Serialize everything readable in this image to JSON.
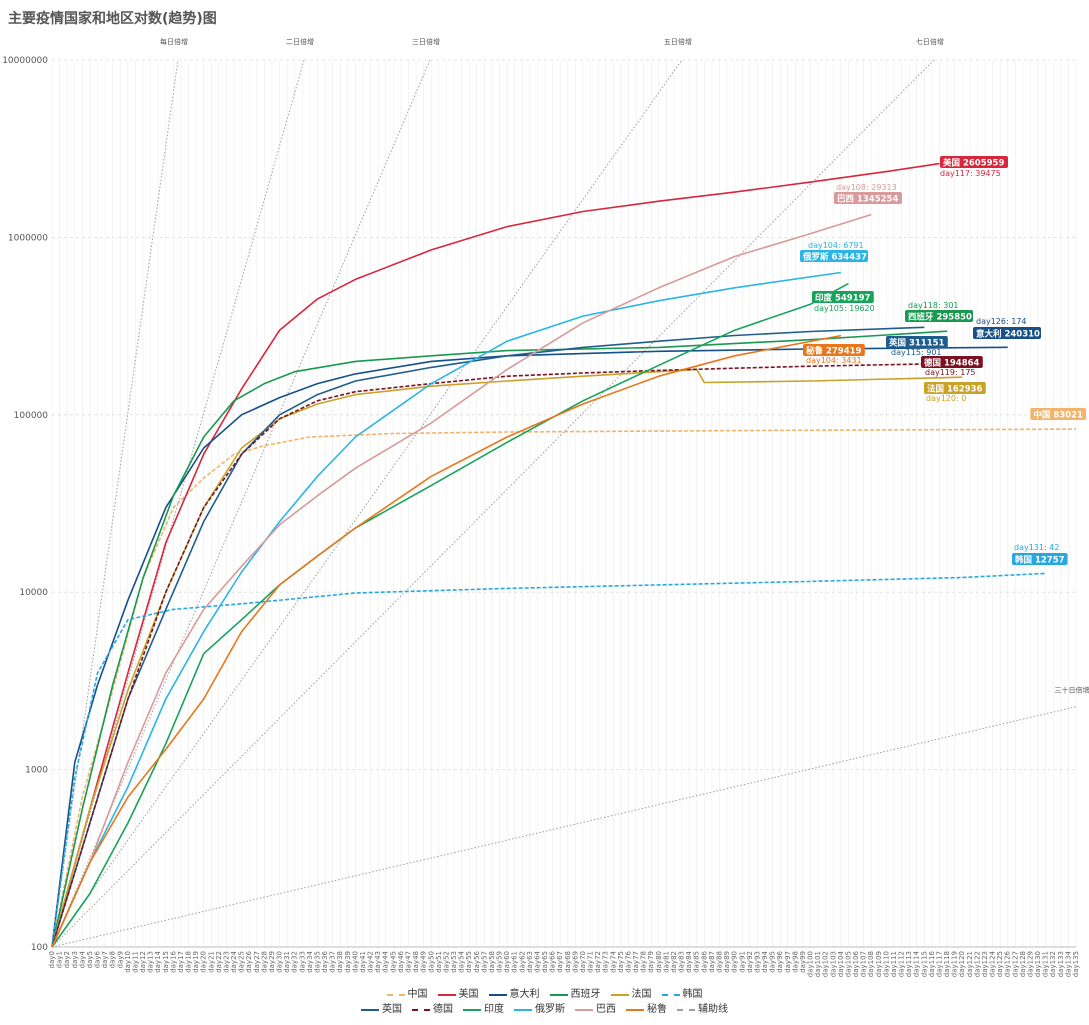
{
  "chart_data": {
    "type": "line",
    "title": "主要疫情国家和地区对数(趋势)图",
    "y_scale": "log",
    "ylim": [
      100,
      10000000
    ],
    "y_ticks": [
      "100",
      "1000",
      "10000",
      "100000",
      "1000000",
      "10000000"
    ],
    "x_prefix": "day",
    "x_max": 135,
    "reference_lines": [
      {
        "label": "每日倍增",
        "doubling_days": 1
      },
      {
        "label": "二日倍增",
        "doubling_days": 2
      },
      {
        "label": "三日倍增",
        "doubling_days": 3
      },
      {
        "label": "五日倍增",
        "doubling_days": 5
      },
      {
        "label": "七日倍增",
        "doubling_days": 7
      },
      {
        "label": "三十日倍增",
        "doubling_days": 30
      }
    ],
    "series": [
      {
        "name": "中国",
        "color": "#f2b46a",
        "dash": true,
        "points": [
          [
            0,
            100
          ],
          [
            4,
            700
          ],
          [
            8,
            2800
          ],
          [
            12,
            12000
          ],
          [
            16,
            30000
          ],
          [
            20,
            44000
          ],
          [
            24,
            60000
          ],
          [
            28,
            67000
          ],
          [
            34,
            75000
          ],
          [
            45,
            78500
          ],
          [
            60,
            80000
          ],
          [
            90,
            81500
          ],
          [
            135,
            83021
          ]
        ],
        "end_label": "中国 83021",
        "day_label": ""
      },
      {
        "name": "美国",
        "color": "#d7263d",
        "dash": false,
        "points": [
          [
            0,
            100
          ],
          [
            5,
            600
          ],
          [
            10,
            3500
          ],
          [
            15,
            19000
          ],
          [
            20,
            60000
          ],
          [
            25,
            140000
          ],
          [
            30,
            300000
          ],
          [
            35,
            450000
          ],
          [
            40,
            580000
          ],
          [
            50,
            850000
          ],
          [
            60,
            1150000
          ],
          [
            70,
            1400000
          ],
          [
            80,
            1600000
          ],
          [
            90,
            1800000
          ],
          [
            100,
            2050000
          ],
          [
            110,
            2350000
          ],
          [
            117,
            2605959
          ]
        ],
        "end_label": "美国 2605959",
        "day_label": "day117: 39475"
      },
      {
        "name": "意大利",
        "color": "#174f88",
        "dash": false,
        "points": [
          [
            0,
            100
          ],
          [
            3,
            1100
          ],
          [
            6,
            3000
          ],
          [
            10,
            9000
          ],
          [
            15,
            30000
          ],
          [
            20,
            65000
          ],
          [
            25,
            100000
          ],
          [
            30,
            125000
          ],
          [
            35,
            150000
          ],
          [
            40,
            170000
          ],
          [
            50,
            200000
          ],
          [
            60,
            215000
          ],
          [
            80,
            228000
          ],
          [
            100,
            235000
          ],
          [
            126,
            240310
          ]
        ],
        "end_label": "意大利 240310",
        "day_label": "day126: 174"
      },
      {
        "name": "西班牙",
        "color": "#1a9850",
        "dash": false,
        "points": [
          [
            0,
            100
          ],
          [
            4,
            600
          ],
          [
            8,
            3000
          ],
          [
            12,
            12000
          ],
          [
            16,
            35000
          ],
          [
            20,
            75000
          ],
          [
            24,
            120000
          ],
          [
            28,
            150000
          ],
          [
            32,
            175000
          ],
          [
            40,
            200000
          ],
          [
            50,
            215000
          ],
          [
            60,
            230000
          ],
          [
            80,
            240000
          ],
          [
            100,
            265000
          ],
          [
            118,
            295850
          ]
        ],
        "end_label": "西班牙 295850",
        "day_label": "day118: 301"
      },
      {
        "name": "法国",
        "color": "#c9a227",
        "dash": false,
        "points": [
          [
            0,
            100
          ],
          [
            5,
            600
          ],
          [
            10,
            2800
          ],
          [
            15,
            10000
          ],
          [
            20,
            30000
          ],
          [
            25,
            65000
          ],
          [
            30,
            95000
          ],
          [
            35,
            115000
          ],
          [
            40,
            130000
          ],
          [
            50,
            145000
          ],
          [
            60,
            155000
          ],
          [
            70,
            165000
          ],
          [
            80,
            175000
          ],
          [
            85,
            180000
          ],
          [
            86,
            152000
          ],
          [
            100,
            155000
          ],
          [
            120,
            162936
          ]
        ],
        "end_label": "法国 162936",
        "day_label": "day120: 0"
      },
      {
        "name": "韩国",
        "color": "#29a8e0",
        "dash": true,
        "points": [
          [
            0,
            100
          ],
          [
            3,
            900
          ],
          [
            6,
            3500
          ],
          [
            10,
            7000
          ],
          [
            16,
            8000
          ],
          [
            25,
            8600
          ],
          [
            40,
            9900
          ],
          [
            60,
            10500
          ],
          [
            80,
            11000
          ],
          [
            100,
            11500
          ],
          [
            120,
            12100
          ],
          [
            131,
            12757
          ]
        ],
        "end_label": "韩国 12757",
        "day_label": "day131: 42"
      },
      {
        "name": "英国",
        "color": "#1f5e8c",
        "dash": false,
        "points": [
          [
            0,
            100
          ],
          [
            5,
            500
          ],
          [
            10,
            2500
          ],
          [
            15,
            8000
          ],
          [
            20,
            25000
          ],
          [
            25,
            60000
          ],
          [
            30,
            100000
          ],
          [
            35,
            130000
          ],
          [
            40,
            155000
          ],
          [
            50,
            185000
          ],
          [
            60,
            215000
          ],
          [
            70,
            240000
          ],
          [
            80,
            260000
          ],
          [
            90,
            280000
          ],
          [
            100,
            295000
          ],
          [
            115,
            311151
          ]
        ],
        "end_label": "英国 311151",
        "day_label": "day115: 901"
      },
      {
        "name": "德国",
        "color": "#7a1222",
        "dash": true,
        "points": [
          [
            0,
            100
          ],
          [
            5,
            500
          ],
          [
            10,
            2500
          ],
          [
            15,
            10000
          ],
          [
            20,
            30000
          ],
          [
            25,
            60000
          ],
          [
            30,
            95000
          ],
          [
            35,
            120000
          ],
          [
            40,
            135000
          ],
          [
            50,
            150000
          ],
          [
            60,
            165000
          ],
          [
            70,
            172000
          ],
          [
            80,
            178000
          ],
          [
            90,
            183000
          ],
          [
            100,
            188000
          ],
          [
            119,
            194864
          ]
        ],
        "end_label": "德国 194864",
        "day_label": "day119: 175"
      },
      {
        "name": "印度",
        "color": "#17a35c",
        "dash": false,
        "points": [
          [
            0,
            100
          ],
          [
            5,
            200
          ],
          [
            10,
            500
          ],
          [
            15,
            1400
          ],
          [
            20,
            4500
          ],
          [
            25,
            7000
          ],
          [
            30,
            11000
          ],
          [
            35,
            16000
          ],
          [
            40,
            23000
          ],
          [
            50,
            40000
          ],
          [
            60,
            70000
          ],
          [
            70,
            120000
          ],
          [
            80,
            190000
          ],
          [
            90,
            300000
          ],
          [
            100,
            420000
          ],
          [
            105,
            549197
          ]
        ],
        "end_label": "印度 549197",
        "day_label": "day105: 19620"
      },
      {
        "name": "俄罗斯",
        "color": "#2bb5e6",
        "dash": false,
        "points": [
          [
            0,
            100
          ],
          [
            5,
            300
          ],
          [
            10,
            800
          ],
          [
            15,
            2500
          ],
          [
            20,
            6000
          ],
          [
            25,
            13000
          ],
          [
            30,
            25000
          ],
          [
            35,
            45000
          ],
          [
            40,
            75000
          ],
          [
            50,
            150000
          ],
          [
            60,
            260000
          ],
          [
            70,
            360000
          ],
          [
            80,
            440000
          ],
          [
            90,
            520000
          ],
          [
            104,
            634437
          ]
        ],
        "end_label": "俄罗斯 634437",
        "day_label": "day104: 6791"
      },
      {
        "name": "巴西",
        "color": "#d89a9a",
        "dash": false,
        "points": [
          [
            0,
            100
          ],
          [
            5,
            300
          ],
          [
            10,
            1100
          ],
          [
            15,
            3500
          ],
          [
            20,
            8000
          ],
          [
            25,
            14000
          ],
          [
            30,
            24000
          ],
          [
            35,
            35000
          ],
          [
            40,
            50000
          ],
          [
            50,
            90000
          ],
          [
            60,
            180000
          ],
          [
            70,
            330000
          ],
          [
            80,
            520000
          ],
          [
            90,
            780000
          ],
          [
            100,
            1050000
          ],
          [
            108,
            1345254
          ]
        ],
        "end_label": "巴西 1345254",
        "day_label": "day108: 29313"
      },
      {
        "name": "秘鲁",
        "color": "#e8771c",
        "dash": false,
        "points": [
          [
            0,
            100
          ],
          [
            5,
            300
          ],
          [
            10,
            700
          ],
          [
            15,
            1300
          ],
          [
            20,
            2500
          ],
          [
            25,
            6000
          ],
          [
            30,
            11000
          ],
          [
            35,
            16000
          ],
          [
            40,
            23000
          ],
          [
            50,
            45000
          ],
          [
            60,
            75000
          ],
          [
            70,
            115000
          ],
          [
            80,
            165000
          ],
          [
            90,
            215000
          ],
          [
            104,
            279419
          ]
        ],
        "end_label": "秘鲁 279419",
        "day_label": "day104: 3431"
      }
    ],
    "legend": {
      "placement": "bottom",
      "row1": [
        {
          "name": "中国",
          "color": "#f2b46a",
          "dash": true
        },
        {
          "name": "美国",
          "color": "#d7263d",
          "dash": false
        },
        {
          "name": "意大利",
          "color": "#174f88",
          "dash": false
        },
        {
          "name": "西班牙",
          "color": "#1a9850",
          "dash": false
        },
        {
          "name": "法国",
          "color": "#c9a227",
          "dash": false
        },
        {
          "name": "韩国",
          "color": "#29a8e0",
          "dash": true
        }
      ],
      "row2": [
        {
          "name": "英国",
          "color": "#1f5e8c",
          "dash": false
        },
        {
          "name": "德国",
          "color": "#7a1222",
          "dash": true
        },
        {
          "name": "印度",
          "color": "#17a35c",
          "dash": false
        },
        {
          "name": "俄罗斯",
          "color": "#2bb5e6",
          "dash": false
        },
        {
          "name": "巴西",
          "color": "#d89a9a",
          "dash": false
        },
        {
          "name": "秘鲁",
          "color": "#e8771c",
          "dash": false
        },
        {
          "name": "辅助线",
          "color": "#9e9e9e",
          "dash": true
        }
      ]
    },
    "grid": true
  }
}
